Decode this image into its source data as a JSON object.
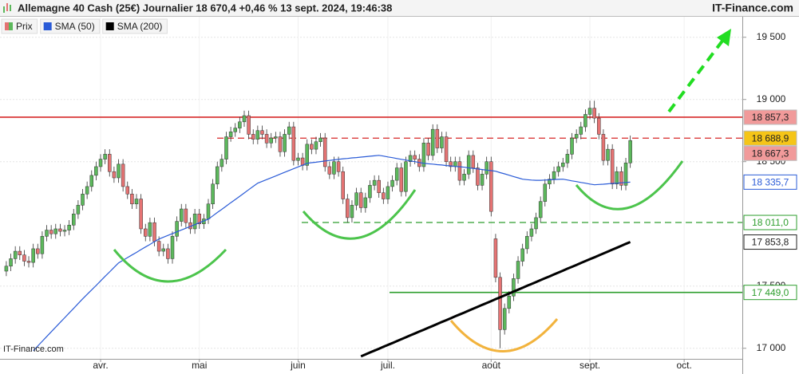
{
  "chart_data": {
    "type": "candlestick",
    "title": "Allemagne 40 Cash (25€) Journalier 18 670,4 +0,46 % 13 sept. 2024, 19:46:38",
    "brand": "IT-Finance.com",
    "watermark": "IT-Finance.com",
    "categories": [
      null,
      null,
      null,
      null,
      null,
      null,
      null,
      null,
      null,
      null,
      null,
      null,
      null,
      null,
      null,
      null,
      null,
      null,
      null,
      null,
      null,
      "avr.",
      null,
      null,
      null,
      null,
      null,
      null,
      null,
      null,
      null,
      null,
      null,
      null,
      null,
      null,
      null,
      null,
      null,
      null,
      null,
      null,
      null,
      "mai",
      null,
      null,
      null,
      null,
      null,
      null,
      null,
      null,
      null,
      null,
      null,
      null,
      null,
      null,
      null,
      null,
      null,
      null,
      null,
      null,
      null,
      "juin",
      null,
      null,
      null,
      null,
      null,
      null,
      null,
      null,
      null,
      null,
      null,
      null,
      null,
      null,
      null,
      null,
      null,
      null,
      null,
      "juil.",
      null,
      null,
      null,
      null,
      null,
      null,
      null,
      null,
      null,
      null,
      null,
      null,
      null,
      null,
      null,
      null,
      null,
      null,
      null,
      null,
      null,
      null,
      "août",
      null,
      null,
      null,
      null,
      null,
      null,
      null,
      null,
      null,
      null,
      null,
      null,
      null,
      null,
      null,
      null,
      null,
      null,
      null,
      null,
      null,
      "sept.",
      null,
      null,
      null,
      null,
      null,
      null,
      null,
      null,
      null,
      null,
      null,
      null,
      null,
      null,
      null,
      null,
      null,
      null,
      null,
      null,
      "oct."
    ],
    "series": [
      {
        "name": "Prix",
        "up_color": "#5cb85c",
        "down_color": "#e57373",
        "open": [
          17620,
          17660,
          17720,
          17780,
          17750,
          17700,
          17690,
          17800,
          17760,
          17900,
          17950,
          17920,
          17960,
          17940,
          17950,
          17990,
          18080,
          18150,
          18240,
          18300,
          18390,
          18460,
          18520,
          18560,
          18420,
          18370,
          18480,
          18300,
          18240,
          18160,
          18200,
          17960,
          17900,
          18010,
          17860,
          17780,
          17800,
          17720,
          17900,
          18020,
          18120,
          18010,
          17960,
          18080,
          18000,
          18040,
          18160,
          18320,
          18460,
          18520,
          18700,
          18740,
          18770,
          18820,
          18870,
          18720,
          18680,
          18750,
          18720,
          18650,
          18690,
          18700,
          18580,
          18720,
          18780,
          18510,
          18530,
          18470,
          18640,
          18600,
          18660,
          18690,
          18460,
          18400,
          18500,
          18420,
          18200,
          18050,
          18150,
          18250,
          18130,
          18210,
          18310,
          18350,
          18250,
          18200,
          18300,
          18350,
          18450,
          18260,
          18500,
          18550,
          18520,
          18460,
          18650,
          18550,
          18760,
          18610,
          18700,
          18500,
          18460,
          18500,
          18350,
          18400,
          18550,
          18450,
          18310,
          18400,
          18500,
          17880,
          17570,
          17150,
          17320,
          17420,
          17560,
          17700,
          17800,
          17900,
          17960,
          18050,
          18180,
          18320,
          18360,
          18420,
          18460,
          18490,
          18560,
          18690,
          18720,
          18780,
          18880,
          18930,
          18850,
          18720,
          18510,
          18600,
          18320,
          18420,
          18310,
          18490,
          null,
          null,
          null,
          null,
          null,
          null,
          null,
          null,
          null,
          null,
          null,
          null
        ],
        "high": [
          17700,
          17760,
          17820,
          17820,
          17790,
          17740,
          17840,
          17840,
          17940,
          17990,
          17990,
          18000,
          18000,
          17990,
          18030,
          18120,
          18190,
          18280,
          18340,
          18430,
          18500,
          18560,
          18600,
          18600,
          18460,
          18520,
          18520,
          18340,
          18280,
          18240,
          18240,
          18000,
          18050,
          18050,
          17900,
          17840,
          17840,
          17940,
          18060,
          18160,
          18160,
          18050,
          18120,
          18120,
          18080,
          18200,
          18360,
          18500,
          18560,
          18740,
          18780,
          18810,
          18860,
          18910,
          18910,
          18760,
          18790,
          18790,
          18760,
          18730,
          18740,
          18740,
          18760,
          18820,
          18820,
          18570,
          18570,
          18680,
          18680,
          18700,
          18730,
          18730,
          18500,
          18540,
          18540,
          18460,
          18240,
          18190,
          18290,
          18290,
          18250,
          18350,
          18390,
          18390,
          18290,
          18340,
          18390,
          18490,
          18490,
          18540,
          18590,
          18590,
          18560,
          18690,
          18690,
          18800,
          18800,
          18740,
          18740,
          18540,
          18540,
          18540,
          18440,
          18590,
          18590,
          18490,
          18440,
          18540,
          18540,
          17920,
          17610,
          17360,
          17460,
          17600,
          17740,
          17840,
          17940,
          18000,
          18090,
          18220,
          18360,
          18400,
          18460,
          18500,
          18530,
          18600,
          18730,
          18760,
          18820,
          18920,
          18990,
          18990,
          18890,
          18760,
          18640,
          18640,
          18460,
          18460,
          18530,
          18710,
          null,
          null,
          null,
          null,
          null,
          null,
          null,
          null,
          null,
          null,
          null,
          null
        ],
        "low": [
          17580,
          17620,
          17680,
          17710,
          17660,
          17650,
          17650,
          17720,
          17720,
          17860,
          17880,
          17880,
          17900,
          17900,
          17910,
          17950,
          18040,
          18110,
          18200,
          18260,
          18350,
          18420,
          18480,
          18380,
          18330,
          18330,
          18260,
          18200,
          18120,
          18120,
          17920,
          17860,
          17860,
          17820,
          17740,
          17740,
          17680,
          17680,
          17860,
          17980,
          17970,
          17920,
          17920,
          17960,
          17960,
          18000,
          18120,
          18280,
          18420,
          18480,
          18660,
          18700,
          18730,
          18780,
          18680,
          18640,
          18640,
          18680,
          18610,
          18610,
          18650,
          18540,
          18540,
          18680,
          18470,
          18470,
          18430,
          18430,
          18560,
          18560,
          18620,
          18420,
          18360,
          18360,
          18380,
          18160,
          18010,
          18010,
          18110,
          18090,
          18090,
          18170,
          18270,
          18210,
          18160,
          18160,
          18260,
          18310,
          18220,
          18220,
          18460,
          18480,
          18420,
          18420,
          18510,
          18510,
          18570,
          18570,
          18460,
          18420,
          18420,
          18310,
          18310,
          18360,
          18410,
          18270,
          18270,
          18360,
          18060,
          17530,
          17000,
          17110,
          17280,
          17380,
          17520,
          17660,
          17760,
          17860,
          17920,
          18010,
          18140,
          18280,
          18320,
          18380,
          18420,
          18450,
          18520,
          18650,
          18680,
          18740,
          18840,
          18810,
          18680,
          18470,
          18470,
          18280,
          18280,
          18270,
          18270,
          18450,
          null,
          null,
          null,
          null,
          null,
          null,
          null,
          null,
          null,
          null,
          null,
          null
        ],
        "close": [
          17660,
          17720,
          17780,
          17750,
          17700,
          17690,
          17800,
          17760,
          17900,
          17950,
          17920,
          17960,
          17940,
          17950,
          17990,
          18080,
          18150,
          18240,
          18300,
          18390,
          18460,
          18520,
          18560,
          18420,
          18370,
          18480,
          18300,
          18240,
          18160,
          18200,
          17960,
          17900,
          18010,
          17860,
          17780,
          17800,
          17720,
          17900,
          18020,
          18120,
          18010,
          17960,
          18080,
          18000,
          18040,
          18160,
          18320,
          18460,
          18520,
          18700,
          18740,
          18770,
          18820,
          18870,
          18720,
          18680,
          18750,
          18720,
          18650,
          18690,
          18700,
          18580,
          18720,
          18780,
          18510,
          18530,
          18470,
          18640,
          18600,
          18660,
          18690,
          18460,
          18400,
          18500,
          18420,
          18200,
          18050,
          18150,
          18250,
          18130,
          18210,
          18310,
          18350,
          18250,
          18200,
          18300,
          18350,
          18450,
          18260,
          18500,
          18550,
          18520,
          18460,
          18650,
          18550,
          18760,
          18610,
          18700,
          18500,
          18460,
          18500,
          18350,
          18400,
          18550,
          18450,
          18310,
          18400,
          18500,
          18100,
          17570,
          17150,
          17320,
          17420,
          17560,
          17700,
          17800,
          17900,
          17960,
          18050,
          18180,
          18320,
          18360,
          18420,
          18460,
          18490,
          18560,
          18690,
          18720,
          18780,
          18880,
          18930,
          18850,
          18720,
          18510,
          18600,
          18320,
          18420,
          18310,
          18490,
          18670,
          null,
          null,
          null,
          null,
          null,
          null,
          null,
          null,
          null,
          null,
          null,
          null
        ]
      },
      {
        "name": "SMA (50)",
        "color": "#2a5bd7",
        "values": [
          null,
          null,
          null,
          null,
          null,
          null,
          16980,
          17018,
          17056,
          17094,
          17132,
          17170,
          17208,
          17245,
          17283,
          17321,
          17359,
          17397,
          17433,
          17469,
          17505,
          17541,
          17578,
          17614,
          17650,
          17686,
          17707,
          17729,
          17750,
          17771,
          17793,
          17814,
          17835,
          17857,
          17878,
          17893,
          17907,
          17922,
          17936,
          17951,
          17965,
          17980,
          17994,
          18009,
          18023,
          18038,
          18064,
          18091,
          18117,
          18143,
          18170,
          18196,
          18222,
          18248,
          18275,
          18301,
          18327,
          18342,
          18356,
          18371,
          18385,
          18400,
          18414,
          18429,
          18443,
          18458,
          18472,
          18487,
          18492,
          18496,
          18501,
          18505,
          18510,
          18514,
          18519,
          18523,
          18526,
          18530,
          18533,
          18537,
          18540,
          18544,
          18547,
          18551,
          18545,
          18538,
          18532,
          18525,
          18519,
          18513,
          18506,
          18500,
          18493,
          18487,
          18483,
          18480,
          18476,
          18473,
          18469,
          18466,
          18462,
          18459,
          18455,
          18450,
          18446,
          18441,
          18437,
          18432,
          18428,
          18423,
          18412,
          18402,
          18391,
          18380,
          18370,
          18359,
          18355,
          18352,
          18350,
          18350,
          18352,
          18354,
          18356,
          18358,
          18359,
          18353,
          18346,
          18340,
          18333,
          18327,
          18320,
          18314,
          18317,
          18319,
          18322,
          18325,
          18327,
          18330,
          18333,
          18335.7,
          null,
          null,
          null,
          null,
          null,
          null,
          null,
          null,
          null,
          null,
          null,
          null
        ]
      },
      {
        "name": "SMA (200)",
        "color": "#000000",
        "values": [
          null,
          null,
          null,
          null,
          null,
          null,
          null,
          null,
          null,
          null,
          null,
          null,
          null,
          null,
          null,
          null,
          null,
          null,
          null,
          null,
          null,
          null,
          null,
          null,
          null,
          null,
          null,
          null,
          null,
          null,
          null,
          null,
          null,
          null,
          null,
          null,
          null,
          null,
          null,
          null,
          null,
          null,
          null,
          null,
          null,
          null,
          null,
          null,
          null,
          null,
          null,
          null,
          null,
          null,
          null,
          null,
          null,
          null,
          null,
          null,
          null,
          null,
          null,
          null,
          null,
          null,
          null,
          null,
          null,
          null,
          null,
          null,
          null,
          null,
          null,
          null,
          null,
          null,
          null,
          16935,
          16950,
          16966,
          16981,
          16996,
          17012,
          17027,
          17042,
          17058,
          17073,
          17088,
          17104,
          17119,
          17134,
          17149,
          17165,
          17180,
          17195,
          17211,
          17226,
          17241,
          17257,
          17272,
          17287,
          17303,
          17318,
          17333,
          17349,
          17364,
          17379,
          17395,
          17410,
          17425,
          17440,
          17456,
          17471,
          17486,
          17502,
          17517,
          17532,
          17548,
          17563,
          17578,
          17594,
          17609,
          17624,
          17640,
          17655,
          17670,
          17686,
          17701,
          17716,
          17731,
          17747,
          17762,
          17777,
          17793,
          17808,
          17823,
          17839,
          17853.8,
          null,
          null,
          null,
          null,
          null,
          null,
          null,
          null,
          null,
          null,
          null,
          null
        ]
      }
    ],
    "levels": [
      {
        "value": 18857.3,
        "label": "18 857,3",
        "color": "#d62828",
        "box": "#f19a9a",
        "line": "solid"
      },
      {
        "value": 18688.9,
        "label": "18 688,9",
        "color": "#d62828",
        "box": "#f5c518",
        "line": "dashed"
      },
      {
        "value": 18667.3,
        "label": "18 667,3",
        "color": "#222222",
        "box": "#f19a9a"
      },
      {
        "value": 18335.7,
        "label": "18 335,7",
        "color": "#2a5bd7",
        "box": "#ffffff"
      },
      {
        "value": 18011.0,
        "label": "18 011,0",
        "color": "#2e9e2e",
        "box": "#ffffff",
        "line": "dashed"
      },
      {
        "value": 17853.8,
        "label": "17 853,8",
        "color": "#222222",
        "box": "#ffffff"
      },
      {
        "value": 17449.0,
        "label": "17 449,0",
        "color": "#2e9e2e",
        "box": "#ffffff",
        "line": "solid"
      }
    ],
    "ylim": [
      16915,
      19620
    ],
    "yticks": [
      {
        "value": 19500,
        "label": "19 500"
      },
      {
        "value": 19000,
        "label": "19 000"
      },
      {
        "value": 18500,
        "label": "18 500"
      },
      {
        "value": 17500,
        "label": "17 500"
      },
      {
        "value": 17000,
        "label": "17 000"
      }
    ],
    "grid": true
  }
}
